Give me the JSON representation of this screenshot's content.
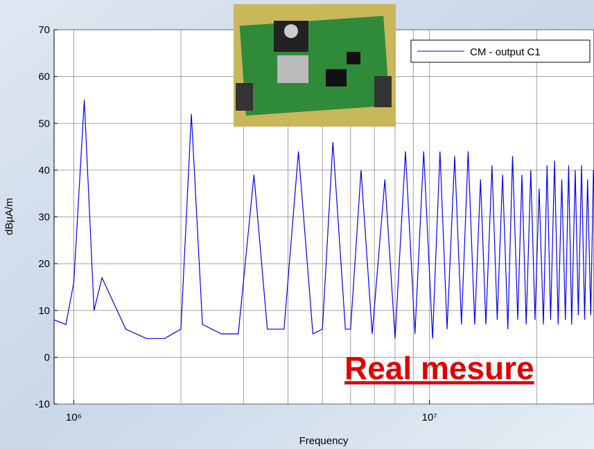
{
  "chart_data": {
    "type": "line",
    "title": "Real mesure",
    "xlabel": "Frequency",
    "ylabel": "dBµA/m",
    "xscale": "log",
    "grid": true,
    "legend": "upper right",
    "xlim": [
      880000,
      29000000
    ],
    "ylim": [
      -10,
      70
    ],
    "xticks": [
      {
        "value": 1000000,
        "label": "10⁶"
      },
      {
        "value": 10000000,
        "label": "10⁷"
      }
    ],
    "xgrid_minor": [
      2000000,
      3000000,
      4000000,
      5000000,
      6000000,
      7000000,
      8000000,
      9000000,
      20000000
    ],
    "yticks": [
      -10,
      0,
      10,
      20,
      30,
      40,
      50,
      60,
      70
    ],
    "x": [
      880000,
      950000,
      1000000,
      1070000,
      1140000,
      1200000,
      1400000,
      1600000,
      1800000,
      2000000,
      2140000,
      2300000,
      2600000,
      2900000,
      3210000,
      3500000,
      3900000,
      4280000,
      4700000,
      5000000,
      5350000,
      5800000,
      6000000,
      6420000,
      6900000,
      7490000,
      8000000,
      8560000,
      9100000,
      9630000,
      10200000,
      10700000,
      11200000,
      11770000,
      12300000,
      12840000,
      13400000,
      13910000,
      14400000,
      14980000,
      15500000,
      16050000,
      16600000,
      17120000,
      17700000,
      18190000,
      18700000,
      19260000,
      19800000,
      20330000,
      20900000,
      21400000,
      21900000,
      22470000,
      23000000,
      23540000,
      24100000,
      24610000,
      25100000,
      25680000,
      26200000,
      26750000,
      27300000,
      27820000,
      28400000,
      28900000
    ],
    "series": [
      {
        "name": "CM - output C1",
        "color": "#0000ee",
        "values": [
          8,
          7,
          16,
          55,
          10,
          17,
          6,
          4,
          4,
          6,
          52,
          7,
          5,
          5,
          39,
          6,
          6,
          44,
          5,
          6,
          46,
          6,
          6,
          40,
          5,
          38,
          4,
          44,
          5,
          44,
          4,
          44,
          6,
          43,
          7,
          44,
          7,
          38,
          7,
          41,
          8,
          39,
          6,
          43,
          8,
          39,
          7,
          40,
          8,
          36,
          7,
          41,
          8,
          42,
          7,
          38,
          8,
          41,
          7,
          40,
          9,
          41,
          8,
          38,
          9,
          40
        ]
      }
    ]
  }
}
